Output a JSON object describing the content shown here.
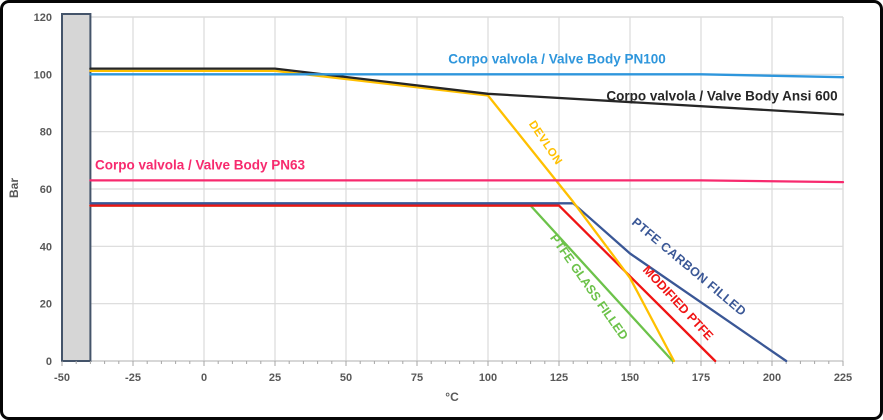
{
  "axis": {
    "x_title": "°C",
    "y_title": "Bar"
  },
  "chart_data": {
    "type": "line",
    "title": "",
    "xlabel": "°C",
    "ylabel": "Bar",
    "x_range": [
      -50,
      225
    ],
    "y_range": [
      0,
      120
    ],
    "x_ticks": [
      -50,
      -25,
      0,
      25,
      50,
      75,
      100,
      125,
      150,
      175,
      200,
      225
    ],
    "y_ticks": [
      0,
      20,
      40,
      60,
      80,
      100,
      120
    ],
    "x_minor_tick_step": 5,
    "grid": true,
    "legend_position": "labels-on-plot",
    "grid_color": "#dadada",
    "axis_line_color": "#bfbfbf",
    "tick_color": "#a6a6a6",
    "tick_label_color": "#595959",
    "excluded_zone": {
      "x_from": -50,
      "x_to": -40,
      "fill": "#d6d6d6",
      "stroke": "#44546a"
    },
    "series": [
      {
        "id": "ptfe-glass-filled",
        "label": "PTFE GLASS FILLED",
        "color": "#6cc24a",
        "points": [
          [
            -40,
            54.2
          ],
          [
            115,
            54.2
          ],
          [
            165,
            0
          ]
        ]
      },
      {
        "id": "modified-ptfe",
        "label": "MODIFIED PTFE",
        "color": "#f01414",
        "points": [
          [
            -40,
            54.2
          ],
          [
            125,
            54.2
          ],
          [
            180,
            0
          ]
        ]
      },
      {
        "id": "ptfe-carbon-filled",
        "label": "PTFE CARBON FILLED",
        "color": "#3a5796",
        "points": [
          [
            -40,
            55
          ],
          [
            130,
            55
          ],
          [
            150,
            37.5
          ],
          [
            205,
            0
          ]
        ]
      },
      {
        "id": "devlon",
        "label": "DEVLON",
        "color": "#ffc000",
        "points": [
          [
            -40,
            101.2
          ],
          [
            25,
            101.2
          ],
          [
            100,
            92.6
          ],
          [
            130,
            55.5
          ],
          [
            150,
            29
          ],
          [
            165.5,
            0
          ]
        ]
      },
      {
        "id": "valve-body-ansi-600",
        "label": "Corpo valvola / Valve Body Ansi 600",
        "color": "#262626",
        "points": [
          [
            -40,
            102
          ],
          [
            25,
            102
          ],
          [
            100,
            93.2
          ],
          [
            225,
            86
          ]
        ]
      },
      {
        "id": "valve-body-pn63",
        "label": "Corpo valvola / Valve Body PN63",
        "color": "#f72a6e",
        "points": [
          [
            -40,
            63
          ],
          [
            175,
            63
          ],
          [
            225,
            62.4
          ]
        ]
      },
      {
        "id": "valve-body-pn100",
        "label": "Corpo valvola / Valve Body PN100",
        "color": "#2e96dc",
        "points": [
          [
            -40,
            100
          ],
          [
            175,
            100
          ],
          [
            225,
            99
          ]
        ]
      }
    ]
  }
}
